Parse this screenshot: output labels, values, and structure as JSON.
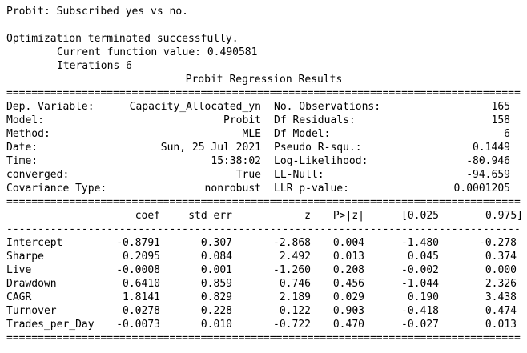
{
  "page": {
    "background": "#ffffff",
    "text_color": "#000000"
  },
  "header": {
    "caption": "Probit: Subscribed yes vs no.",
    "optimization_status": "Optimization terminated successfully.",
    "current_function_value": "Current function value: 0.490581",
    "iterations": "Iterations 6",
    "results_title": "Probit Regression Results"
  },
  "separators": {
    "double": "==================================================================================",
    "single": "----------------------------------------------------------------------------------"
  },
  "info_table": {
    "rows": [
      {
        "label_left": "Dep. Variable:",
        "value_left": "Capacity_Allocated_yn",
        "label_right": "No. Observations:",
        "value_right": "165"
      },
      {
        "label_left": "Model:",
        "value_left": "Probit",
        "label_right": "Df Residuals:",
        "value_right": "158"
      },
      {
        "label_left": "Method:",
        "value_left": "MLE",
        "label_right": "Df Model:",
        "value_right": "6"
      },
      {
        "label_left": "Date:",
        "value_left": "Sun, 25 Jul 2021",
        "label_right": "Pseudo R-squ.:",
        "value_right": "0.1449"
      },
      {
        "label_left": "Time:",
        "value_left": "15:38:02",
        "label_right": "Log-Likelihood:",
        "value_right": "-80.946"
      },
      {
        "label_left": "converged:",
        "value_left": "True",
        "label_right": "LL-Null:",
        "value_right": "-94.659"
      },
      {
        "label_left": "Covariance Type:",
        "value_left": "nonrobust",
        "label_right": "LLR p-value:",
        "value_right": "0.0001205"
      }
    ]
  },
  "coef_table": {
    "col_headers": [
      "",
      "coef",
      "std err",
      "z",
      "P>|z|",
      "[0.025",
      "0.975]"
    ],
    "rows": [
      {
        "name": "Intercept",
        "coef": "-0.8791",
        "std_err": "0.307",
        "z": "-2.868",
        "p": "0.004",
        "ci_low": "-1.480",
        "ci_high": "-0.278"
      },
      {
        "name": "Sharpe",
        "coef": "0.2095",
        "std_err": "0.084",
        "z": "2.492",
        "p": "0.013",
        "ci_low": "0.045",
        "ci_high": "0.374"
      },
      {
        "name": "Live",
        "coef": "-0.0008",
        "std_err": "0.001",
        "z": "-1.260",
        "p": "0.208",
        "ci_low": "-0.002",
        "ci_high": "0.000"
      },
      {
        "name": "Drawdown",
        "coef": "0.6410",
        "std_err": "0.859",
        "z": "0.746",
        "p": "0.456",
        "ci_low": "-1.044",
        "ci_high": "2.326"
      },
      {
        "name": "CAGR",
        "coef": "1.8141",
        "std_err": "0.829",
        "z": "2.189",
        "p": "0.029",
        "ci_low": "0.190",
        "ci_high": "3.438"
      },
      {
        "name": "Turnover",
        "coef": "0.0278",
        "std_err": "0.228",
        "z": "0.122",
        "p": "0.903",
        "ci_low": "-0.418",
        "ci_high": "0.474"
      },
      {
        "name": "Trades_per_Day",
        "coef": "-0.0073",
        "std_err": "0.010",
        "z": "-0.722",
        "p": "0.470",
        "ci_low": "-0.027",
        "ci_high": "0.013"
      }
    ]
  }
}
